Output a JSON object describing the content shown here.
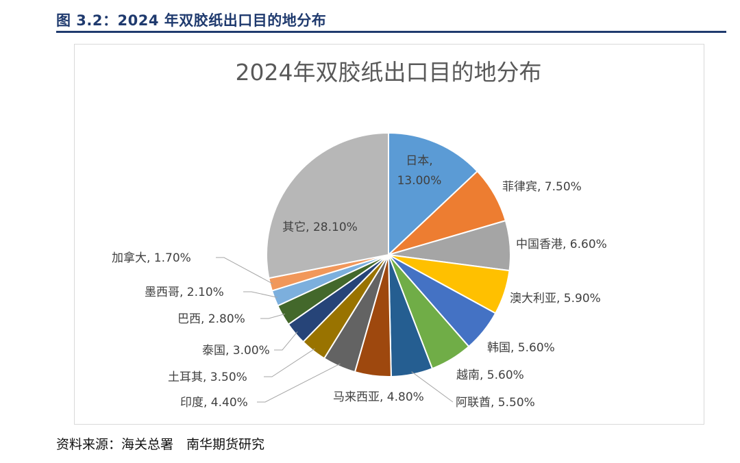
{
  "figure": {
    "caption": "图 3.2：2024 年双胶纸出口目的地分布",
    "source": "资料来源：海关总署　南华期货研究"
  },
  "chart_data": {
    "type": "pie",
    "title": "2024年双胶纸出口目的地分布",
    "legend": "none",
    "data_labels": "category, percentage",
    "slices": [
      {
        "label": "日本",
        "value": 13.0,
        "display": "13.00%",
        "color": "#5b9bd5"
      },
      {
        "label": "菲律宾",
        "value": 7.5,
        "display": "7.50%",
        "color": "#ed7d31"
      },
      {
        "label": "中国香港",
        "value": 6.6,
        "display": "6.60%",
        "color": "#a5a5a5"
      },
      {
        "label": "澳大利亚",
        "value": 5.9,
        "display": "5.90%",
        "color": "#ffc000"
      },
      {
        "label": "韩国",
        "value": 5.6,
        "display": "5.60%",
        "color": "#4472c4"
      },
      {
        "label": "越南",
        "value": 5.6,
        "display": "5.60%",
        "color": "#70ad47"
      },
      {
        "label": "阿联酋",
        "value": 5.5,
        "display": "5.50%",
        "color": "#255e91"
      },
      {
        "label": "马来西亚",
        "value": 4.8,
        "display": "4.80%",
        "color": "#9e480e"
      },
      {
        "label": "印度",
        "value": 4.4,
        "display": "4.40%",
        "color": "#636363"
      },
      {
        "label": "土耳其",
        "value": 3.5,
        "display": "3.50%",
        "color": "#997300"
      },
      {
        "label": "泰国",
        "value": 3.0,
        "display": "3.00%",
        "color": "#264478"
      },
      {
        "label": "巴西",
        "value": 2.8,
        "display": "2.80%",
        "color": "#43682b"
      },
      {
        "label": "墨西哥",
        "value": 2.1,
        "display": "2.10%",
        "color": "#7cafdd"
      },
      {
        "label": "加拿大",
        "value": 1.7,
        "display": "1.70%",
        "color": "#f1975a"
      },
      {
        "label": "其它",
        "value": 28.1,
        "display": "28.10%",
        "color": "#b7b7b7"
      }
    ]
  }
}
